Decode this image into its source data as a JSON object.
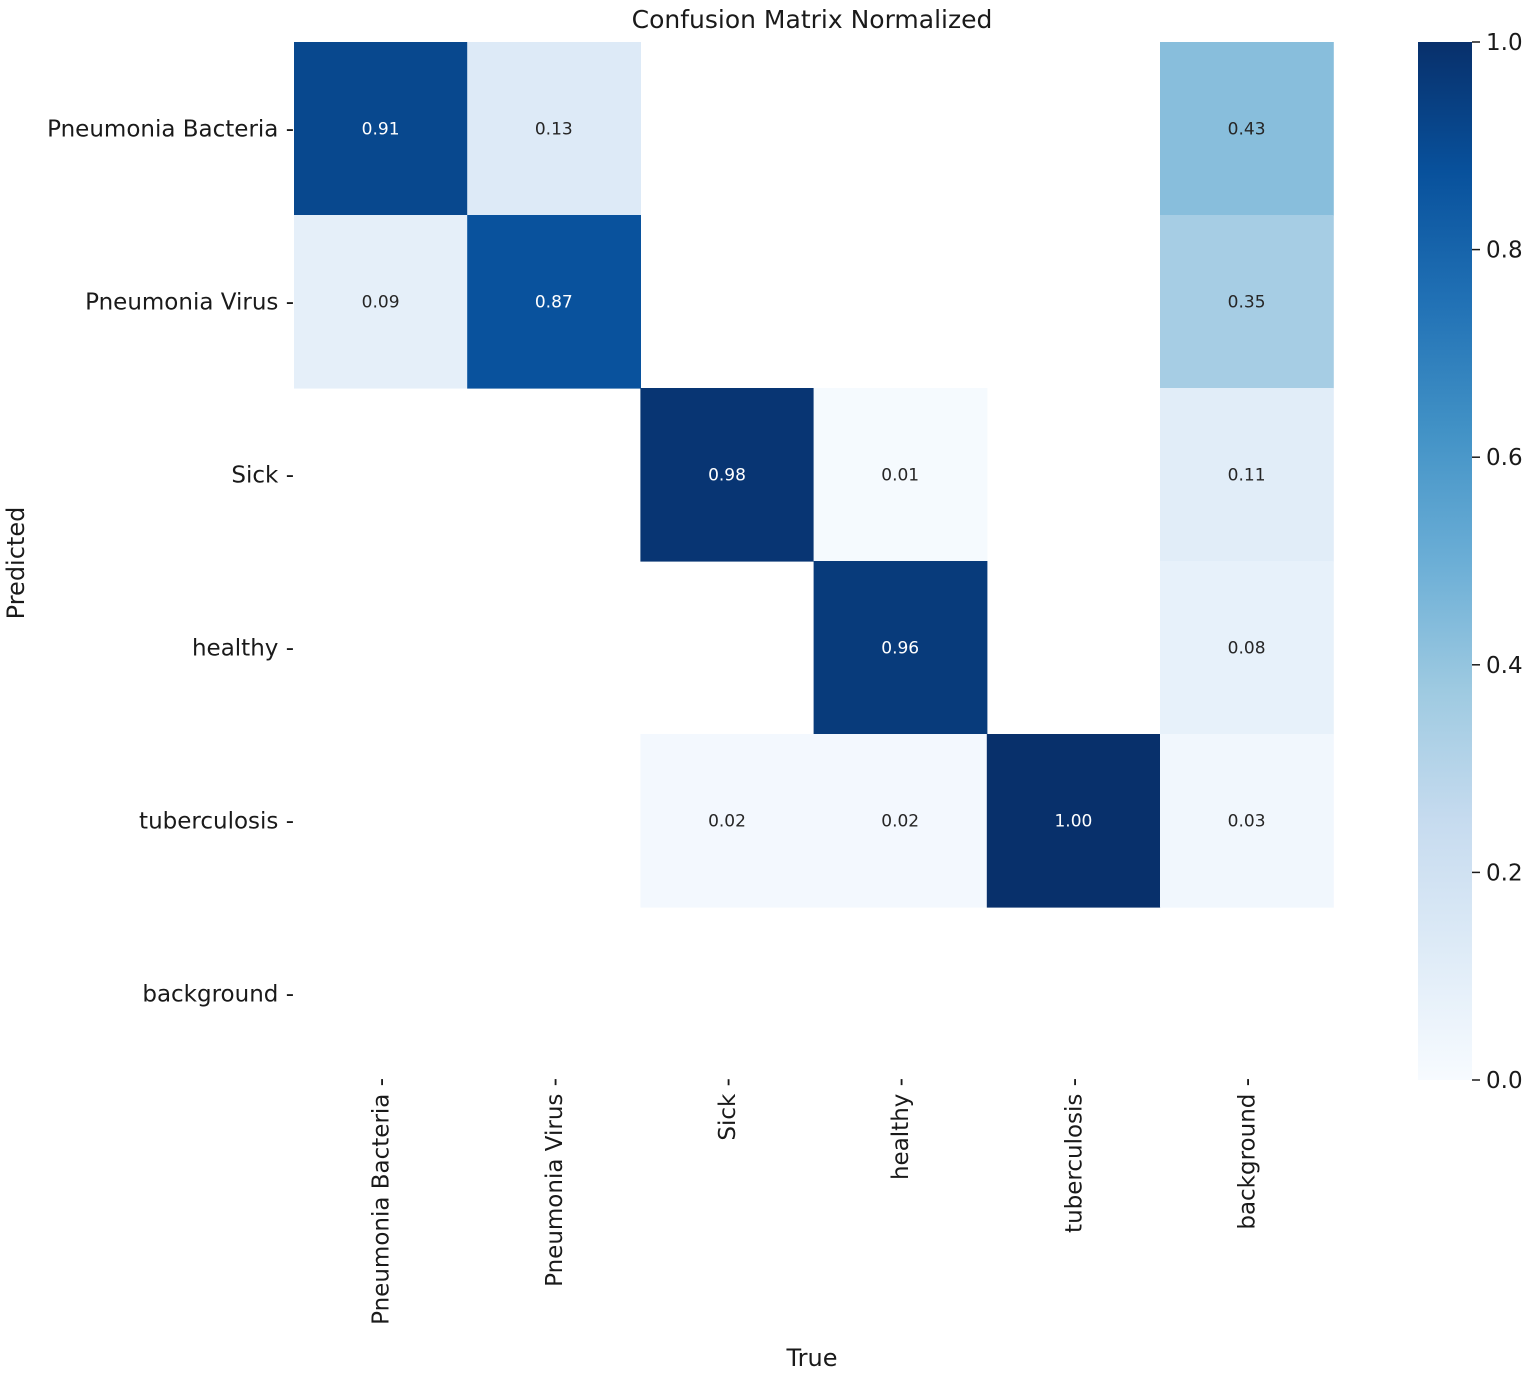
{
  "chart_data": {
    "type": "heatmap",
    "title": "Confusion Matrix Normalized",
    "xlabel": "True",
    "ylabel": "Predicted",
    "x_categories": [
      "Pneumonia Bacteria",
      "Pneumonia Virus",
      "Sick",
      "healthy",
      "tuberculosis",
      "background"
    ],
    "y_categories": [
      "Pneumonia Bacteria",
      "Pneumonia Virus",
      "Sick",
      "healthy",
      "tuberculosis",
      "background"
    ],
    "values": [
      [
        0.91,
        0.13,
        null,
        null,
        null,
        0.43
      ],
      [
        0.09,
        0.87,
        null,
        null,
        null,
        0.35
      ],
      [
        null,
        null,
        0.98,
        0.01,
        null,
        0.11
      ],
      [
        null,
        null,
        null,
        0.96,
        null,
        0.08
      ],
      [
        null,
        null,
        0.02,
        0.02,
        1.0,
        0.03
      ],
      [
        null,
        null,
        null,
        null,
        null,
        null
      ]
    ],
    "value_format": "0.00",
    "colormap": "Blues",
    "colorbar": {
      "range": [
        0.0,
        1.0
      ],
      "ticks": [
        "0.0",
        "0.2",
        "0.4",
        "0.6",
        "0.8",
        "1.0"
      ]
    }
  }
}
